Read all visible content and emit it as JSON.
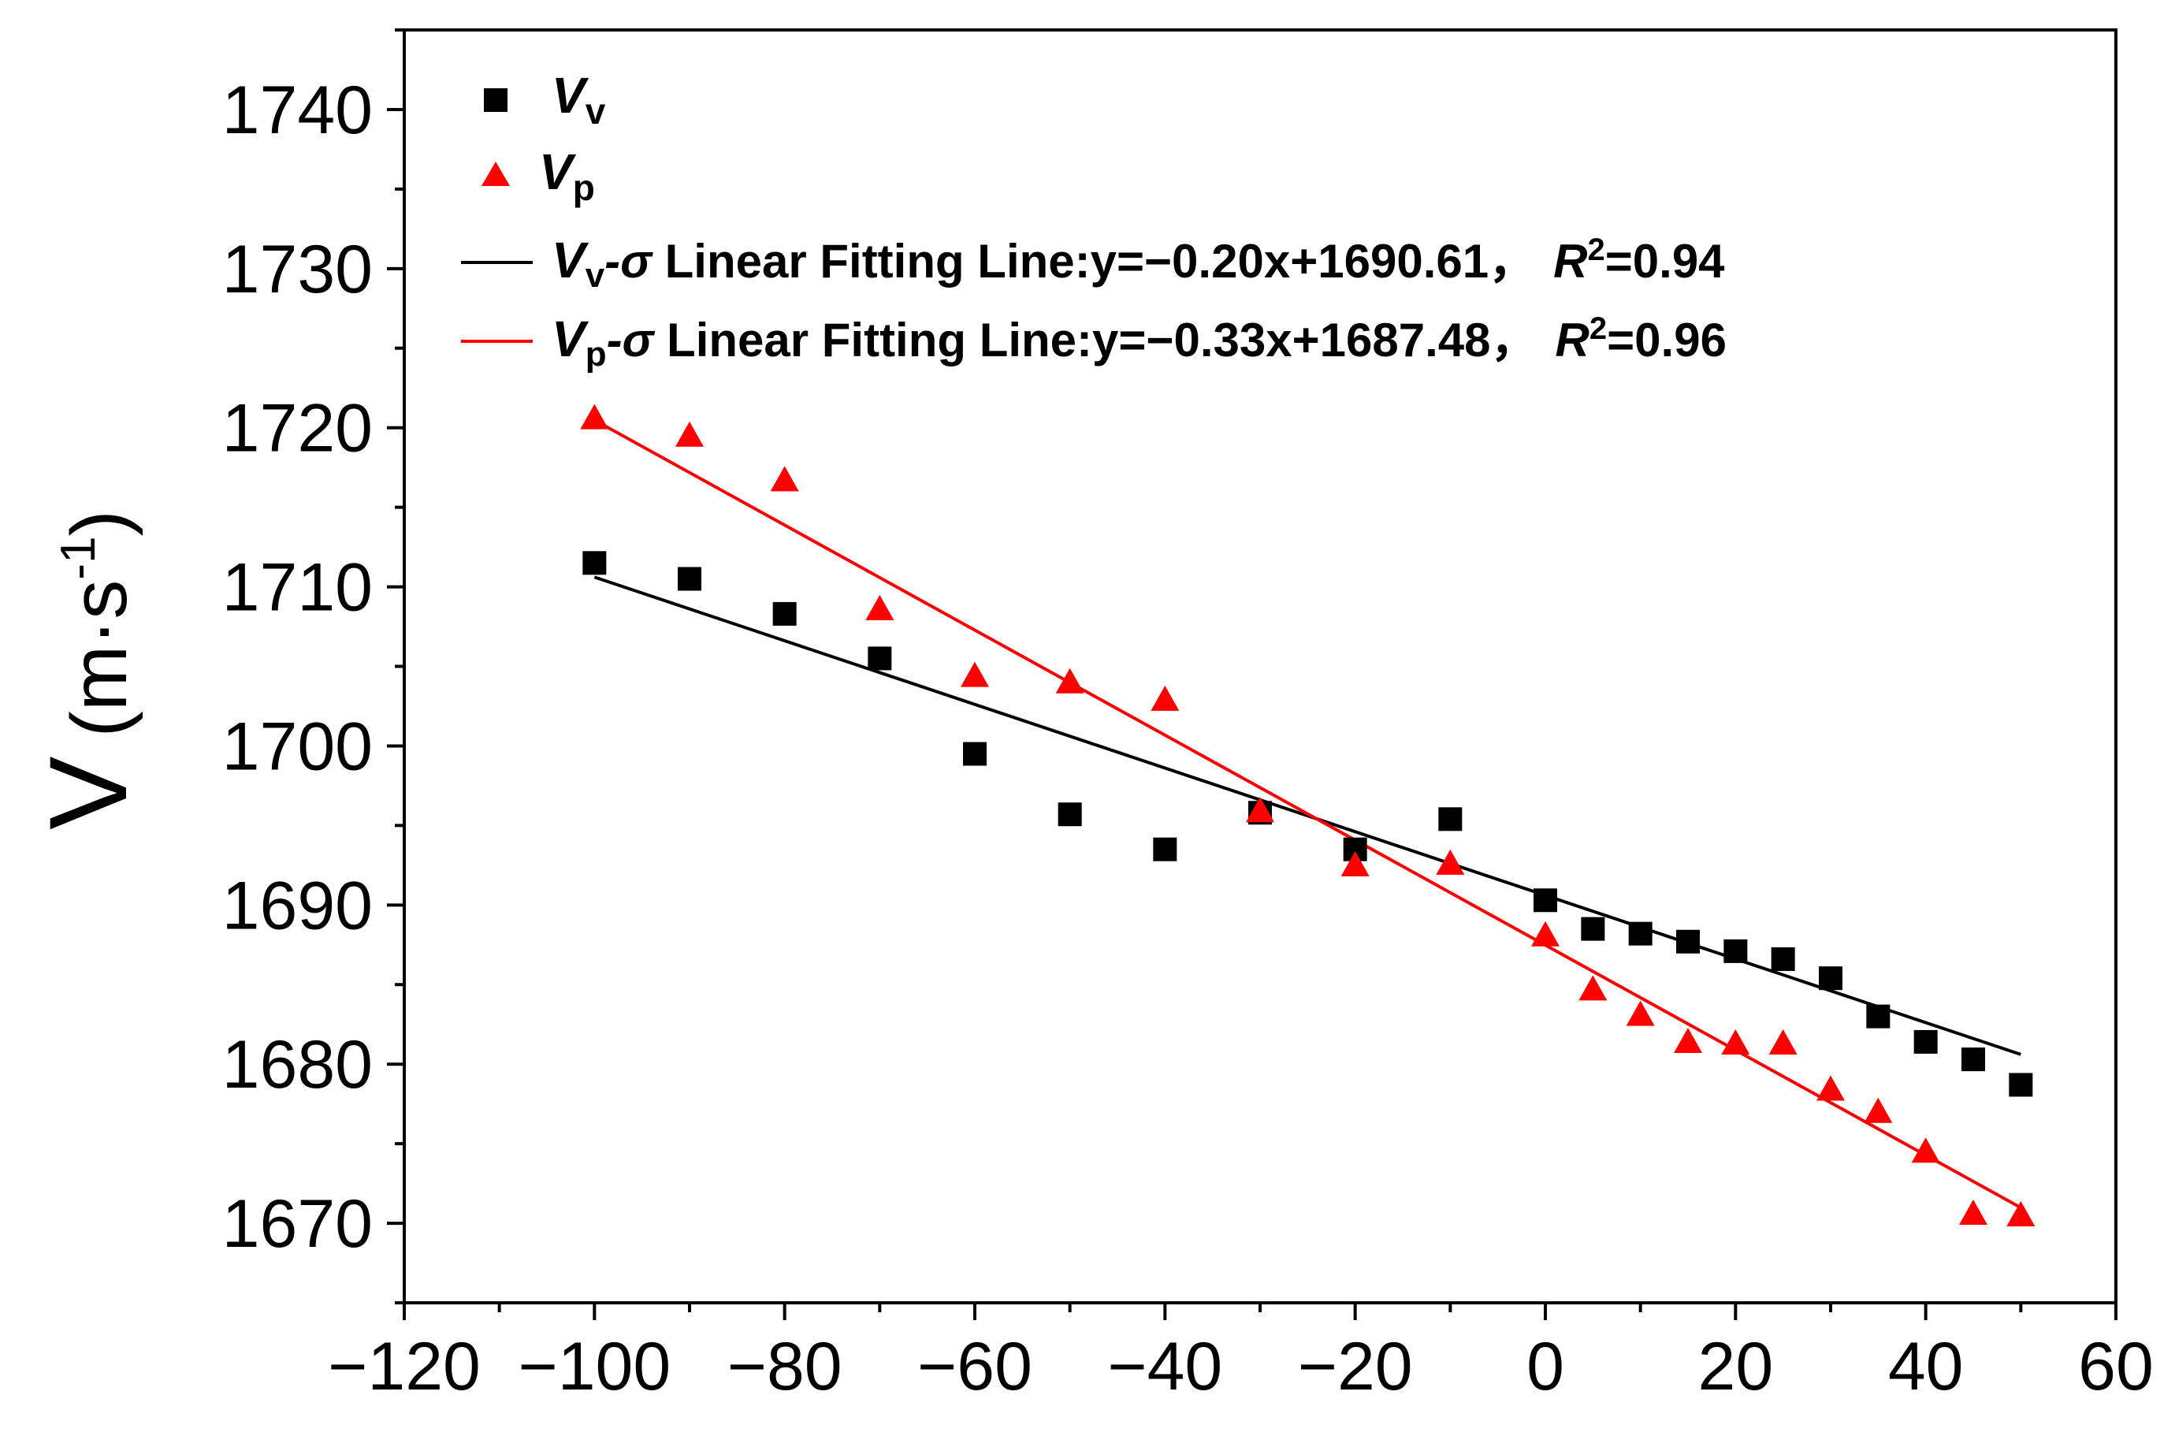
{
  "chart_data": {
    "type": "scatter",
    "title": "",
    "xlabel": "",
    "ylabel": "V (m·s⁻¹)",
    "ylabel_parts": {
      "symbol": "V",
      "unit": "(m·s",
      "exponent": "-1",
      "close": ")"
    },
    "xlim": [
      -120,
      60
    ],
    "ylim": [
      1665,
      1745
    ],
    "x_ticks": [
      -120,
      -100,
      -80,
      -60,
      -40,
      -20,
      0,
      20,
      40,
      60
    ],
    "x_tick_labels": [
      "−120",
      "−100",
      "−80",
      "−60",
      "−40",
      "−20",
      "0",
      "20",
      "40",
      "60"
    ],
    "y_ticks": [
      1670,
      1680,
      1690,
      1700,
      1710,
      1720,
      1730,
      1740
    ],
    "y_tick_labels": [
      "1670",
      "1680",
      "1690",
      "1700",
      "1710",
      "1720",
      "1730",
      "1740"
    ],
    "grid": false,
    "legend_position": "top-left",
    "series": [
      {
        "name": "Vv",
        "legend_symbol": "V",
        "legend_sub": "v",
        "marker": "square",
        "color": "#000000",
        "x": [
          -100,
          -90,
          -80,
          -70,
          -60,
          -50,
          -40,
          -30,
          -20,
          -10,
          0,
          5,
          10,
          15,
          20,
          25,
          30,
          35,
          40,
          45,
          50
        ],
        "y": [
          1711.5,
          1710.5,
          1708.3,
          1705.5,
          1699.5,
          1695.7,
          1693.5,
          1695.8,
          1693.5,
          1695.4,
          1690.3,
          1688.5,
          1688.2,
          1687.7,
          1687.1,
          1686.6,
          1685.4,
          1683.0,
          1681.4,
          1680.3,
          1678.7
        ]
      },
      {
        "name": "Vp",
        "legend_symbol": "V",
        "legend_sub": "p",
        "marker": "triangle",
        "color": "#ff0000",
        "x": [
          -100,
          -90,
          -80,
          -70,
          -60,
          -50,
          -40,
          -30,
          -20,
          -10,
          0,
          5,
          10,
          15,
          20,
          25,
          30,
          35,
          40,
          45,
          50
        ],
        "y": [
          1720.5,
          1719.4,
          1716.6,
          1708.5,
          1704.3,
          1703.9,
          1702.8,
          1695.8,
          1692.4,
          1692.5,
          1688.0,
          1684.6,
          1683.0,
          1681.3,
          1681.2,
          1681.2,
          1678.3,
          1676.9,
          1674.4,
          1670.5,
          1670.4
        ]
      }
    ],
    "fit_lines": [
      {
        "name": "Vv-σ Linear Fitting Line",
        "legend_symbol": "V",
        "legend_sub": "v",
        "legend_sigma": "-σ",
        "legend_text": " Linear Fitting Line:y=−0.20x+1690.61，",
        "legend_r": "R",
        "legend_r_sup": "2",
        "legend_r_value": "=0.94",
        "color": "#000000",
        "slope": -0.2,
        "intercept": 1690.61,
        "x_range": [
          -100,
          50
        ]
      },
      {
        "name": "Vp-σ Linear Fitting Line",
        "legend_symbol": "V",
        "legend_sub": "p",
        "legend_sigma": "-σ",
        "legend_text": " Linear Fitting Line:y=−0.33x+1687.48，",
        "legend_r": "R",
        "legend_r_sup": "2",
        "legend_r_value": "=0.96",
        "color": "#ff0000",
        "slope": -0.33,
        "intercept": 1687.48,
        "x_range": [
          -100,
          50
        ]
      }
    ]
  }
}
